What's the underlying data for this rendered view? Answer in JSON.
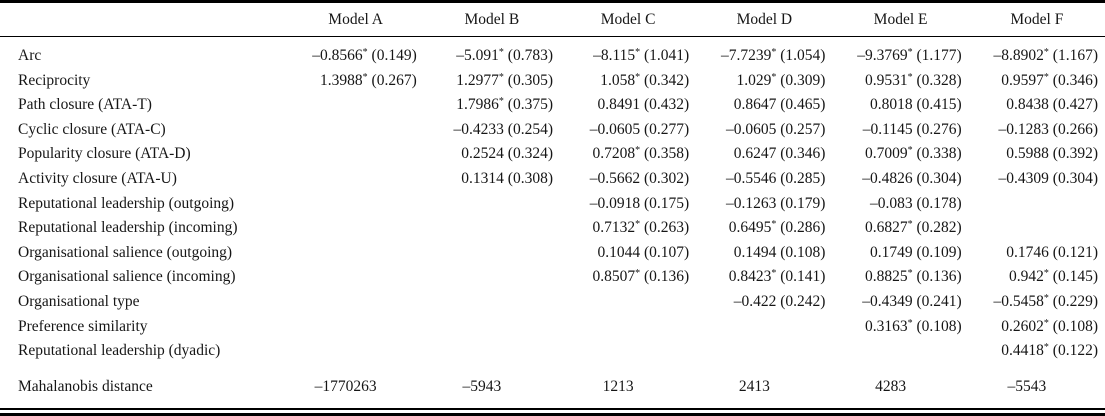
{
  "table": {
    "significance_marker": "*",
    "columns": [
      "",
      "Model A",
      "Model B",
      "Model C",
      "Model D",
      "Model E",
      "Model F"
    ],
    "rows": [
      {
        "label": "Arc",
        "cells": [
          {
            "est": "–0.8566",
            "star": true,
            "se": "(0.149)"
          },
          {
            "est": "–5.091",
            "star": true,
            "se": "(0.783)"
          },
          {
            "est": "–8.115",
            "star": true,
            "se": "(1.041)"
          },
          {
            "est": "–7.7239",
            "star": true,
            "se": "(1.054)"
          },
          {
            "est": "–9.3769",
            "star": true,
            "se": "(1.177)"
          },
          {
            "est": "–8.8902",
            "star": true,
            "se": "(1.167)"
          }
        ]
      },
      {
        "label": "Reciprocity",
        "cells": [
          {
            "est": "1.3988",
            "star": true,
            "se": "(0.267)"
          },
          {
            "est": "1.2977",
            "star": true,
            "se": "(0.305)"
          },
          {
            "est": "1.058",
            "star": true,
            "se": "(0.342)"
          },
          {
            "est": "1.029",
            "star": true,
            "se": "(0.309)"
          },
          {
            "est": "0.9531",
            "star": true,
            "se": "(0.328)"
          },
          {
            "est": "0.9597",
            "star": true,
            "se": "(0.346)"
          }
        ]
      },
      {
        "label": "Path closure (ATA-T)",
        "cells": [
          null,
          {
            "est": "1.7986",
            "star": true,
            "se": "(0.375)"
          },
          {
            "est": "0.8491",
            "star": false,
            "se": "(0.432)"
          },
          {
            "est": "0.8647",
            "star": false,
            "se": "(0.465)"
          },
          {
            "est": "0.8018",
            "star": false,
            "se": "(0.415)"
          },
          {
            "est": "0.8438",
            "star": false,
            "se": "(0.427)"
          }
        ]
      },
      {
        "label": "Cyclic closure (ATA-C)",
        "cells": [
          null,
          {
            "est": "–0.4233",
            "star": false,
            "se": "(0.254)"
          },
          {
            "est": "–0.0605",
            "star": false,
            "se": "(0.277)"
          },
          {
            "est": "–0.0605",
            "star": false,
            "se": "(0.257)"
          },
          {
            "est": "–0.1145",
            "star": false,
            "se": "(0.276)"
          },
          {
            "est": "–0.1283",
            "star": false,
            "se": "(0.266)"
          }
        ]
      },
      {
        "label": "Popularity closure (ATA-D)",
        "cells": [
          null,
          {
            "est": "0.2524",
            "star": false,
            "se": "(0.324)"
          },
          {
            "est": "0.7208",
            "star": true,
            "se": "(0.358)"
          },
          {
            "est": "0.6247",
            "star": false,
            "se": "(0.346)"
          },
          {
            "est": "0.7009",
            "star": true,
            "se": "(0.338)"
          },
          {
            "est": "0.5988",
            "star": false,
            "se": "(0.392)"
          }
        ]
      },
      {
        "label": "Activity closure (ATA-U)",
        "cells": [
          null,
          {
            "est": "0.1314",
            "star": false,
            "se": "(0.308)"
          },
          {
            "est": "–0.5662",
            "star": false,
            "se": "(0.302)"
          },
          {
            "est": "–0.5546",
            "star": false,
            "se": "(0.285)"
          },
          {
            "est": "–0.4826",
            "star": false,
            "se": "(0.304)"
          },
          {
            "est": "–0.4309",
            "star": false,
            "se": "(0.304)"
          }
        ]
      },
      {
        "label": "Reputational leadership (outgoing)",
        "cells": [
          null,
          null,
          {
            "est": "–0.0918",
            "star": false,
            "se": "(0.175)"
          },
          {
            "est": "–0.1263",
            "star": false,
            "se": "(0.179)"
          },
          {
            "est": "–0.083",
            "star": false,
            "se": "(0.178)"
          },
          null
        ]
      },
      {
        "label": "Reputational leadership (incoming)",
        "cells": [
          null,
          null,
          {
            "est": "0.7132",
            "star": true,
            "se": "(0.263)"
          },
          {
            "est": "0.6495",
            "star": true,
            "se": "(0.286)"
          },
          {
            "est": "0.6827",
            "star": true,
            "se": "(0.282)"
          },
          null
        ]
      },
      {
        "label": "Organisational salience (outgoing)",
        "cells": [
          null,
          null,
          {
            "est": "0.1044",
            "star": false,
            "se": "(0.107)"
          },
          {
            "est": "0.1494",
            "star": false,
            "se": "(0.108)"
          },
          {
            "est": "0.1749",
            "star": false,
            "se": "(0.109)"
          },
          {
            "est": "0.1746",
            "star": false,
            "se": "(0.121)"
          }
        ]
      },
      {
        "label": "Organisational salience (incoming)",
        "cells": [
          null,
          null,
          {
            "est": "0.8507",
            "star": true,
            "se": "(0.136)"
          },
          {
            "est": "0.8423",
            "star": true,
            "se": "(0.141)"
          },
          {
            "est": "0.8825",
            "star": true,
            "se": "(0.136)"
          },
          {
            "est": "0.942",
            "star": true,
            "se": "(0.145)"
          }
        ]
      },
      {
        "label": "Organisational type",
        "cells": [
          null,
          null,
          null,
          {
            "est": "–0.422",
            "star": false,
            "se": "(0.242)"
          },
          {
            "est": "–0.4349",
            "star": false,
            "se": "(0.241)"
          },
          {
            "est": "–0.5458",
            "star": true,
            "se": "(0.229)"
          }
        ]
      },
      {
        "label": "Preference similarity",
        "cells": [
          null,
          null,
          null,
          null,
          {
            "est": "0.3163",
            "star": true,
            "se": "(0.108)"
          },
          {
            "est": "0.2602",
            "star": true,
            "se": "(0.108)"
          }
        ]
      },
      {
        "label": "Reputational leadership (dyadic)",
        "cells": [
          null,
          null,
          null,
          null,
          null,
          {
            "est": "0.4418",
            "star": true,
            "se": "(0.122)"
          }
        ]
      },
      {
        "label": "Mahalanobis distance",
        "section": "footer",
        "cells": [
          {
            "est": "–1770263",
            "star": false,
            "se": ""
          },
          {
            "est": "–5943",
            "star": false,
            "se": ""
          },
          {
            "est": "1213",
            "star": false,
            "se": ""
          },
          {
            "est": "2413",
            "star": false,
            "se": ""
          },
          {
            "est": "4283",
            "star": false,
            "se": ""
          },
          {
            "est": "–5543",
            "star": false,
            "se": ""
          }
        ]
      }
    ]
  }
}
